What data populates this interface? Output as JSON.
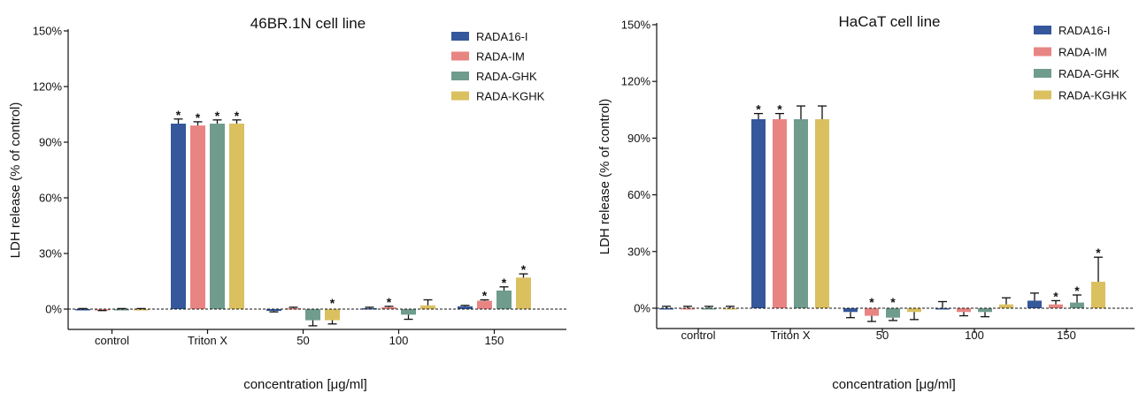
{
  "chart_data": [
    {
      "type": "bar",
      "title": "46BR.1N cell line",
      "xlabel": "concentration [μg/ml]",
      "ylabel": "LDH release (% of control)",
      "categories": [
        "control",
        "Triton X",
        "50",
        "100",
        "150"
      ],
      "ylim": [
        -12,
        150
      ],
      "yticks": [
        0,
        30,
        60,
        90,
        120,
        150
      ],
      "ytick_labels": [
        "0%",
        "30%",
        "60%",
        "90%",
        "120%",
        "150%"
      ],
      "legend_position": "top-right",
      "reference_line": 0,
      "series": [
        {
          "name": "RADA16-I",
          "color": "#35579b",
          "values": [
            0,
            100,
            -1,
            0.5,
            1.5
          ],
          "errors": [
            0.3,
            2.5,
            0.5,
            0.5,
            0.5
          ],
          "significant": [
            false,
            true,
            false,
            false,
            false
          ]
        },
        {
          "name": "RADA-IM",
          "color": "#e88583",
          "values": [
            -0.5,
            99,
            0.5,
            1,
            4.5
          ],
          "errors": [
            0.3,
            2,
            0.5,
            0.5,
            0.5
          ],
          "significant": [
            false,
            true,
            false,
            true,
            true
          ]
        },
        {
          "name": "RADA-GHK",
          "color": "#6f9c8c",
          "values": [
            0,
            100,
            -6,
            -3,
            10
          ],
          "errors": [
            0.3,
            2,
            3,
            2.5,
            2
          ],
          "significant": [
            false,
            true,
            false,
            false,
            true
          ]
        },
        {
          "name": "RADA-KGHK",
          "color": "#dbc060",
          "values": [
            0,
            100,
            -6,
            2,
            17
          ],
          "errors": [
            0.3,
            2,
            2,
            3,
            2
          ],
          "significant": [
            false,
            true,
            true,
            false,
            true
          ]
        }
      ]
    },
    {
      "type": "bar",
      "title": "HaCaT cell line",
      "xlabel": "concentration [μg/ml]",
      "ylabel": "LDH release (% of control)",
      "categories": [
        "control",
        "Triton X",
        "50",
        "100",
        "150"
      ],
      "ylim": [
        -12,
        150
      ],
      "yticks": [
        0,
        30,
        60,
        90,
        120,
        150
      ],
      "ytick_labels": [
        "0%",
        "30%",
        "60%",
        "90%",
        "120%",
        "150%"
      ],
      "legend_position": "top-right",
      "reference_line": 0,
      "series": [
        {
          "name": "RADA16-I",
          "color": "#35579b",
          "values": [
            0,
            100,
            -2,
            0,
            4
          ],
          "errors": [
            1,
            3,
            3,
            3.5,
            4
          ],
          "significant": [
            false,
            true,
            false,
            false,
            false
          ]
        },
        {
          "name": "RADA-IM",
          "color": "#e88583",
          "values": [
            0,
            100,
            -4,
            -2,
            2
          ],
          "errors": [
            1,
            3,
            3,
            2,
            2
          ],
          "significant": [
            false,
            true,
            true,
            false,
            true
          ]
        },
        {
          "name": "RADA-GHK",
          "color": "#6f9c8c",
          "values": [
            0,
            100,
            -5,
            -2,
            3
          ],
          "errors": [
            1,
            7,
            1.5,
            2.5,
            4
          ],
          "significant": [
            false,
            false,
            true,
            false,
            true
          ]
        },
        {
          "name": "RADA-KGHK",
          "color": "#dbc060",
          "values": [
            0,
            100,
            -2,
            2,
            14
          ],
          "errors": [
            1,
            7,
            4,
            3.5,
            13
          ],
          "significant": [
            false,
            false,
            false,
            false,
            true
          ]
        }
      ]
    }
  ]
}
